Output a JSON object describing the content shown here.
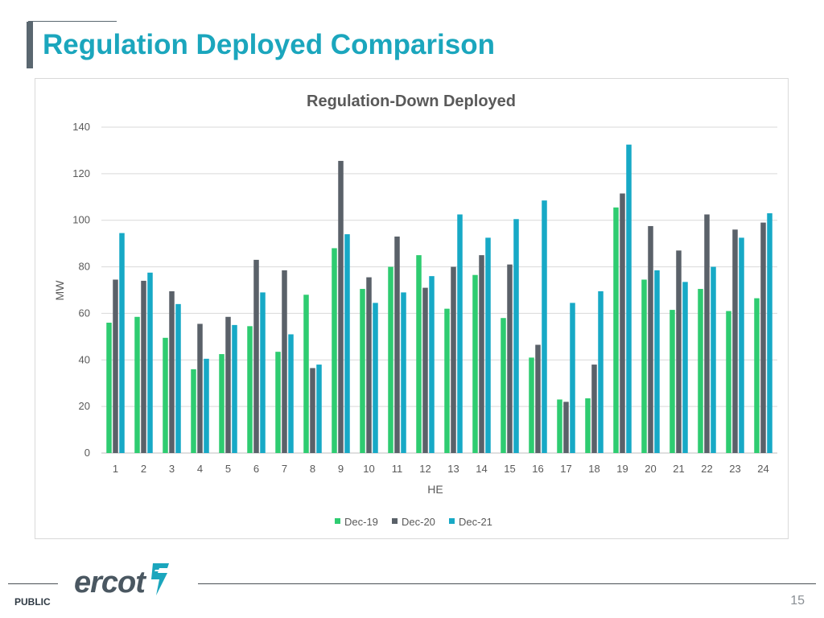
{
  "slide": {
    "title": "Regulation Deployed Comparison",
    "footer_label": "PUBLIC",
    "page_number": "15",
    "logo_text": "ercot"
  },
  "colors": {
    "title": "#1ba6bd",
    "gridline": "#d9d9d9",
    "axis_text": "#595959"
  },
  "chart_data": {
    "type": "bar",
    "title": "Regulation-Down Deployed",
    "xlabel": "HE",
    "ylabel": "MW",
    "ylim": [
      0,
      140
    ],
    "yticks": [
      0,
      20,
      40,
      60,
      80,
      100,
      120,
      140
    ],
    "grid": true,
    "legend_position": "bottom",
    "categories": [
      "1",
      "2",
      "3",
      "4",
      "5",
      "6",
      "7",
      "8",
      "9",
      "10",
      "11",
      "12",
      "13",
      "14",
      "15",
      "16",
      "17",
      "18",
      "19",
      "20",
      "21",
      "22",
      "23",
      "24"
    ],
    "series": [
      {
        "name": "Dec-19",
        "color": "#2ecc71",
        "values": [
          56,
          58.5,
          49.5,
          36,
          42.5,
          54.5,
          43.5,
          68,
          88,
          70.5,
          80,
          85,
          62,
          76.5,
          58,
          41,
          23,
          23.5,
          105.5,
          74.5,
          61.5,
          70.5,
          61,
          66.5
        ]
      },
      {
        "name": "Dec-20",
        "color": "#5a6169",
        "values": [
          74.5,
          74,
          69.5,
          55.5,
          58.5,
          83,
          78.5,
          36.5,
          125.5,
          75.5,
          93,
          71,
          80,
          85,
          81,
          46.5,
          22,
          38,
          111.5,
          97.5,
          87,
          102.5,
          96,
          99
        ]
      },
      {
        "name": "Dec-21",
        "color": "#17a9c6",
        "values": [
          94.5,
          77.5,
          64,
          40.5,
          55,
          69,
          51,
          38,
          94,
          64.5,
          69,
          76,
          102.5,
          92.5,
          100.5,
          108.5,
          64.5,
          69.5,
          132.5,
          78.5,
          73.5,
          80,
          92.5,
          103
        ]
      }
    ]
  }
}
